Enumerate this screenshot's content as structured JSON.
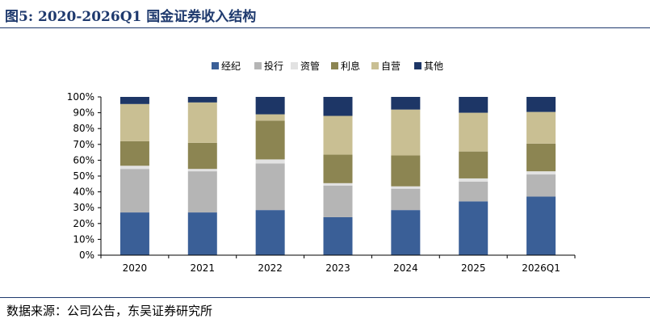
{
  "title": "图5:  2020-2026Q1  国金证券收入结构",
  "source": "数据来源：公司公告，东吴证券研究所",
  "chart_data": {
    "type": "bar",
    "stacked": true,
    "categories": [
      "2020",
      "2021",
      "2022",
      "2023",
      "2024",
      "2025",
      "2026Q1"
    ],
    "y_ticks": [
      "0%",
      "10%",
      "20%",
      "30%",
      "40%",
      "50%",
      "60%",
      "70%",
      "80%",
      "90%",
      "100%"
    ],
    "ylim": [
      0,
      100
    ],
    "legend_position": "top",
    "series": [
      {
        "name": "经纪",
        "color": "#3a5f97",
        "values": [
          27,
          27,
          28.5,
          24,
          28.5,
          34,
          37
        ]
      },
      {
        "name": "投行",
        "color": "#b5b5b5",
        "values": [
          27.5,
          26,
          29.5,
          20,
          13.5,
          12.5,
          14
        ]
      },
      {
        "name": "资管",
        "color": "#e2e2e2",
        "values": [
          2,
          1.5,
          2.5,
          1.5,
          1.5,
          2,
          2
        ]
      },
      {
        "name": "利息",
        "color": "#8c8552",
        "values": [
          15.5,
          16.5,
          24.5,
          18,
          19.5,
          17,
          17.5
        ]
      },
      {
        "name": "自营",
        "color": "#c9bf93",
        "values": [
          23.5,
          25.5,
          4,
          24.5,
          29,
          24.5,
          20
        ]
      },
      {
        "name": "其他",
        "color": "#1d3666",
        "values": [
          4.5,
          3.5,
          11,
          12,
          8,
          10,
          9.5
        ]
      }
    ]
  }
}
